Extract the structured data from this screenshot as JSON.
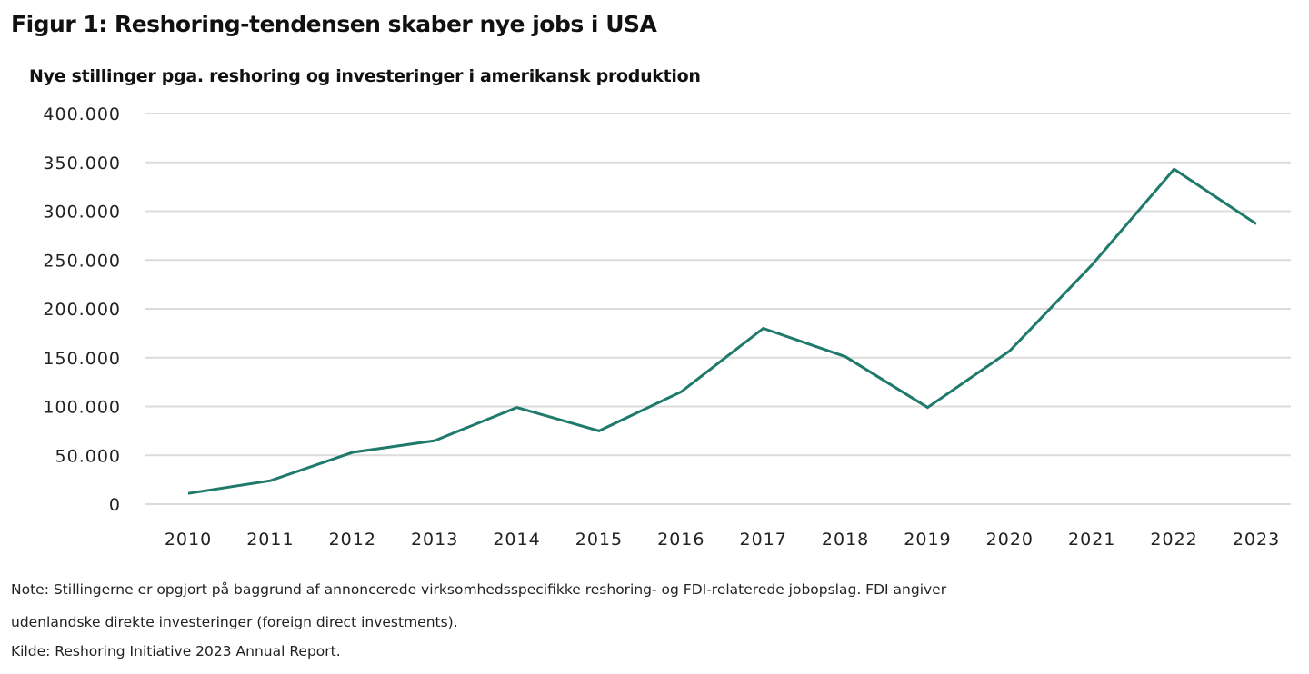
{
  "chart_data": {
    "type": "line",
    "title": "Figur 1: Reshoring-tendensen skaber nye jobs i USA",
    "subtitle": "Nye stillinger pga. reshoring og investeringer i amerikansk produktion",
    "xlabel": "",
    "ylabel": "",
    "ylim": [
      0,
      400000
    ],
    "yticks": [
      0,
      50000,
      100000,
      150000,
      200000,
      250000,
      300000,
      350000,
      400000
    ],
    "ytick_labels": [
      "0",
      "50.000",
      "100.000",
      "150.000",
      "200.000",
      "250.000",
      "300.000",
      "350.000",
      "400.000"
    ],
    "categories": [
      "2010",
      "2011",
      "2012",
      "2013",
      "2014",
      "2015",
      "2016",
      "2017",
      "2018",
      "2019",
      "2020",
      "2021",
      "2022",
      "2023"
    ],
    "series": [
      {
        "name": "Nye stillinger",
        "color": "#1f7a6b",
        "values": [
          11000,
          24000,
          53000,
          65000,
          99000,
          75000,
          115000,
          180000,
          151000,
          99000,
          157000,
          245000,
          343000,
          287000
        ]
      }
    ],
    "grid": true,
    "legend": "none"
  },
  "notes": {
    "line1": "Note: Stillingerne er opgjort på baggrund af annoncerede virksomhedsspecifikke reshoring- og FDI-relaterede jobopslag. FDI angiver",
    "line2": "udenlandske direkte investeringer (foreign direct investments).",
    "source": "Kilde: Reshoring Initiative 2023 Annual Report."
  }
}
